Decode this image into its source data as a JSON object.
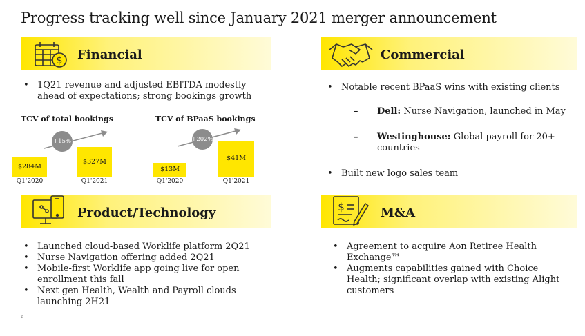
{
  "title": "Progress tracking well since January 2021 merger announcement",
  "financial": {
    "heading": "Financial",
    "icon": "calendar-dollar-icon",
    "bullets": [
      "1Q21 revenue and adjusted EBITDA modestly ahead of expectations; strong bookings growth"
    ]
  },
  "commercial": {
    "heading": "Commercial",
    "icon": "handshake-icon",
    "bullet1": "Notable recent BPaaS wins with existing clients",
    "sub1_bold": "Dell:",
    "sub1_text": " Nurse Navigation, launched in May",
    "sub2_bold": "Westinghouse:",
    "sub2_text": " Global payroll for 20+ countries",
    "bullet2": "Built new logo sales team"
  },
  "product": {
    "heading": "Product/Technology",
    "icon": "mobile-monitor-icon",
    "bullets": [
      "Launched cloud-based Worklife platform 2Q21",
      "Nurse Navigation offering added 2Q21",
      "Mobile-first Worklife app going live for open enrollment this fall",
      "Next gen Health, Wealth and Payroll clouds launching 2H21"
    ]
  },
  "ma": {
    "heading": "M&A",
    "icon": "signed-document-icon",
    "bullets": [
      "Agreement to  acquire Aon Retiree Health Exchange™",
      "Augments capabilities gained with Choice Health; significant overlap with existing Alight customers"
    ]
  },
  "chart_data": [
    {
      "type": "bar",
      "title": "TCV of total bookings",
      "categories": [
        "Q1'2020",
        "Q1'2021"
      ],
      "values": [
        284,
        327
      ],
      "value_labels": [
        "$284M",
        "$327M"
      ],
      "growth_label": "+15%",
      "color": "#ffe600"
    },
    {
      "type": "bar",
      "title": "TCV of BPaaS bookings",
      "categories": [
        "Q1'2020",
        "Q1'2021"
      ],
      "values": [
        13,
        41
      ],
      "value_labels": [
        "$13M",
        "$41M"
      ],
      "growth_label": "+202%",
      "color": "#ffe600"
    }
  ],
  "page_number": "9"
}
